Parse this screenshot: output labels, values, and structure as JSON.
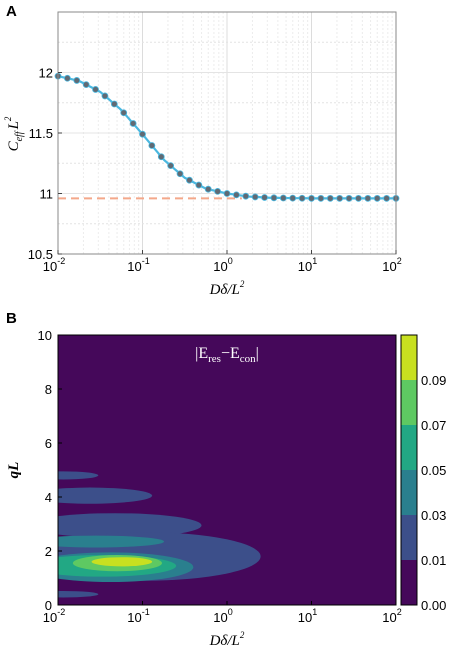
{
  "chart_data": [
    {
      "panel": "A",
      "type": "line",
      "xscale": "log",
      "xlim": [
        0.01,
        100
      ],
      "ylim": [
        10.5,
        12.5
      ],
      "xticks": [
        "10",
        "10",
        "10",
        "10",
        "10"
      ],
      "xtick_exponents": [
        "-2",
        "-1",
        "0",
        "1",
        "2"
      ],
      "yticks": [
        "10.5",
        "11",
        "11.5",
        "12"
      ],
      "xlabel": "Dδ/L",
      "xlabel_sup": "2",
      "ylabel": "C",
      "ylabel_sub": "eff",
      "ylabel_tail": "L",
      "ylabel_sup": "2",
      "grid": true,
      "curve": {
        "x": [
          0.01,
          0.0178,
          0.0316,
          0.0562,
          0.1,
          0.178,
          0.316,
          0.562,
          1,
          1.78,
          3.16,
          5.62,
          10,
          17.8,
          31.6,
          56.2,
          100
        ],
        "y": [
          11.97,
          11.93,
          11.84,
          11.69,
          11.49,
          11.28,
          11.13,
          11.04,
          11.0,
          10.975,
          10.965,
          10.962,
          10.96,
          10.96,
          10.96,
          10.96,
          10.96
        ],
        "color": "#4ab8e0"
      },
      "points_color": "#606a74",
      "asymptote": {
        "y": 10.96,
        "x_end": 1.5,
        "color": "#f4a88a",
        "style": "dashed"
      }
    },
    {
      "panel": "B",
      "type": "heatmap",
      "subtype": "filled-contour",
      "xscale": "log",
      "xlim": [
        0.01,
        100
      ],
      "ylim": [
        0,
        10
      ],
      "xticks": [
        "10",
        "10",
        "10",
        "10",
        "10"
      ],
      "xtick_exponents": [
        "-2",
        "-1",
        "0",
        "1",
        "2"
      ],
      "yticks": [
        "0",
        "2",
        "4",
        "6",
        "8",
        "10"
      ],
      "xlabel": "Dδ/L",
      "xlabel_sup": "2",
      "ylabel": "qL",
      "annotation": "|E",
      "annotation_sub1": "res",
      "annotation_mid": "−E",
      "annotation_sub2": "con",
      "annotation_end": "|",
      "colorbar": {
        "ticks": [
          "0.00",
          "0.01",
          "0.03",
          "0.05",
          "0.07",
          "0.09"
        ],
        "colors": [
          "#45085a",
          "#3c4f8a",
          "#2a7f8e",
          "#22a884",
          "#5ec962",
          "#c8e020"
        ]
      },
      "blobs": [
        {
          "level": 1,
          "x_range": [
            0.01,
            0.03
          ],
          "y_center": 4.8,
          "y_halfwidth": 0.15
        },
        {
          "level": 1,
          "x_range": [
            0.01,
            0.13
          ],
          "y_center": 4.05,
          "y_halfwidth": 0.3
        },
        {
          "level": 1,
          "x_range": [
            0.01,
            0.5
          ],
          "y_center": 2.95,
          "y_halfwidth": 0.45
        },
        {
          "level": 1,
          "x_range": [
            0.01,
            2.5
          ],
          "y_center": 1.8,
          "y_halfwidth": 0.9
        },
        {
          "level": 1,
          "x_range": [
            0.01,
            0.03
          ],
          "y_center": 0.4,
          "y_halfwidth": 0.12
        },
        {
          "level": 2,
          "x_range": [
            0.01,
            0.18
          ],
          "y_center": 2.35,
          "y_halfwidth": 0.22
        },
        {
          "level": 2,
          "x_range": [
            0.01,
            0.4
          ],
          "y_center": 1.4,
          "y_halfwidth": 0.55
        },
        {
          "level": 3,
          "x_range": [
            0.01,
            0.25
          ],
          "y_center": 1.45,
          "y_halfwidth": 0.4
        },
        {
          "level": 4,
          "x_range": [
            0.015,
            0.17
          ],
          "y_center": 1.55,
          "y_halfwidth": 0.3
        },
        {
          "level": 5,
          "x_range": [
            0.025,
            0.13
          ],
          "y_center": 1.6,
          "y_halfwidth": 0.17
        }
      ]
    }
  ]
}
